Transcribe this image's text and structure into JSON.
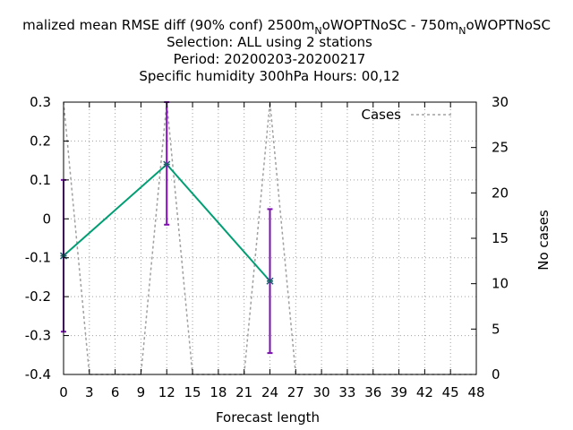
{
  "chart_data": {
    "type": "line",
    "title_lines": [
      "malized mean RMSE diff (90% conf) 2500m_NoWOPTNoSC - 750m_NoWOPTNoSC",
      "Selection: ALL using     2 stations",
      "Period: 20200203-20200217",
      "Specific humidity 300hPa   Hours:  00,12"
    ],
    "title_parts": {
      "pre": "malized mean RMSE diff (90% conf) 2500m",
      "sub1": "N",
      "mid": "oWOPTNoSC - 750m",
      "sub2": "N",
      "post": "oWOPTNoSC"
    },
    "xlabel": "Forecast length",
    "ylabel_right": "No cases",
    "xlim": [
      0,
      48
    ],
    "ylim": [
      -0.4,
      0.3
    ],
    "y2lim": [
      0,
      30
    ],
    "xticks": [
      0,
      3,
      6,
      9,
      12,
      15,
      18,
      21,
      24,
      27,
      30,
      33,
      36,
      39,
      42,
      45,
      48
    ],
    "yticks": [
      0.3,
      0.2,
      0.1,
      0,
      -0.1,
      -0.2,
      -0.3,
      -0.4
    ],
    "ytick_labels": [
      "0.3",
      "0.2",
      "0.1",
      "0",
      "-0.1",
      "-0.2",
      "-0.3",
      "-0.4"
    ],
    "y2ticks": [
      0,
      5,
      10,
      15,
      20,
      25,
      30
    ],
    "grid": true,
    "legend_position": "top-right",
    "series": [
      {
        "kind": "main",
        "color": "#009e73",
        "points": [
          {
            "x": 0,
            "y": -0.095,
            "low": -0.29,
            "high": 0.1
          },
          {
            "x": 12,
            "y": 0.14,
            "low": -0.015,
            "high": 0.3
          },
          {
            "x": 24,
            "y": -0.16,
            "low": -0.345,
            "high": 0.025
          }
        ]
      },
      {
        "name": "Cases",
        "kind": "cases",
        "axis": "y2",
        "color": "#a0a0a0",
        "x": [
          0,
          3,
          9,
          12,
          15,
          21,
          24,
          27,
          48
        ],
        "values": [
          30,
          0,
          0,
          30,
          0,
          0,
          30,
          0,
          0
        ]
      }
    ],
    "errorbar_color": "#7b0fb0"
  }
}
